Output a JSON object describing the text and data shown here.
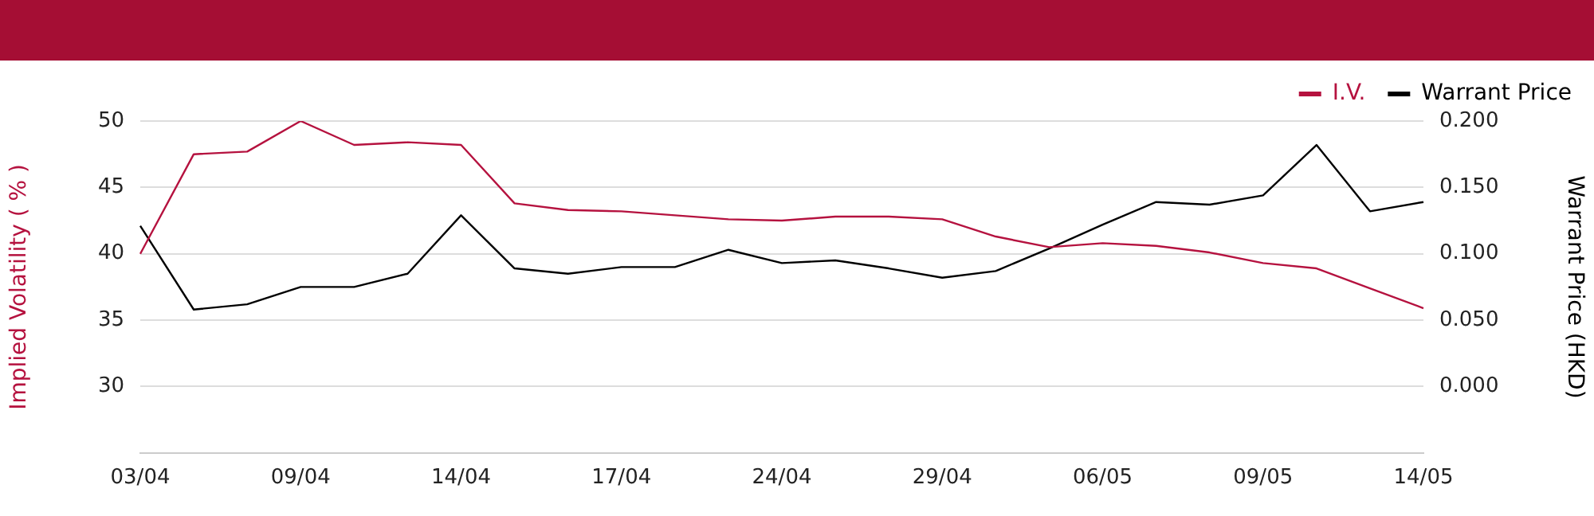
{
  "chart_data": {
    "type": "line",
    "categories": [
      "03/04",
      null,
      null,
      "09/04",
      null,
      null,
      "14/04",
      null,
      null,
      "17/04",
      null,
      null,
      "24/04",
      null,
      null,
      "29/04",
      null,
      null,
      "06/05",
      null,
      null,
      "09/05",
      null,
      null,
      "14/05"
    ],
    "series": [
      {
        "name": "I.V.",
        "color": "#b5123f",
        "values": [
          40,
          47.5,
          47.7,
          50,
          48.2,
          48.4,
          48.2,
          43.8,
          43.3,
          43.2,
          42.9,
          42.6,
          42.5,
          42.8,
          42.8,
          42.6,
          41.3,
          40.5,
          40.8,
          40.6,
          40.1,
          39.3,
          38.9,
          37.4,
          35.9
        ]
      },
      {
        "name": "Warrant Price",
        "color": "#000000",
        "axis": "y2",
        "values": [
          0.121,
          0.058,
          0.062,
          0.075,
          0.075,
          0.085,
          0.129,
          0.089,
          0.085,
          0.09,
          0.09,
          0.103,
          0.093,
          0.095,
          0.089,
          0.082,
          0.087,
          0.104,
          0.122,
          0.139,
          0.137,
          0.144,
          0.182,
          0.132,
          0.139
        ]
      }
    ],
    "ylabel": "Implied Volatility ( % )",
    "y2label": "Warrant Price (HKD)",
    "ylim": [
      25,
      50
    ],
    "yticks": [
      30,
      35,
      40,
      45,
      50
    ],
    "y2lim": [
      -0.05,
      0.2
    ],
    "y2ticks": [
      {
        "value": 0,
        "label": "0.000"
      },
      {
        "value": 0.05,
        "label": "0.050"
      },
      {
        "value": 0.1,
        "label": "0.100"
      },
      {
        "value": 0.15,
        "label": "0.150"
      },
      {
        "value": 0.2,
        "label": "0.200"
      }
    ],
    "grid": "y",
    "legend": "top right",
    "marker": "none",
    "line_style": "solid"
  }
}
